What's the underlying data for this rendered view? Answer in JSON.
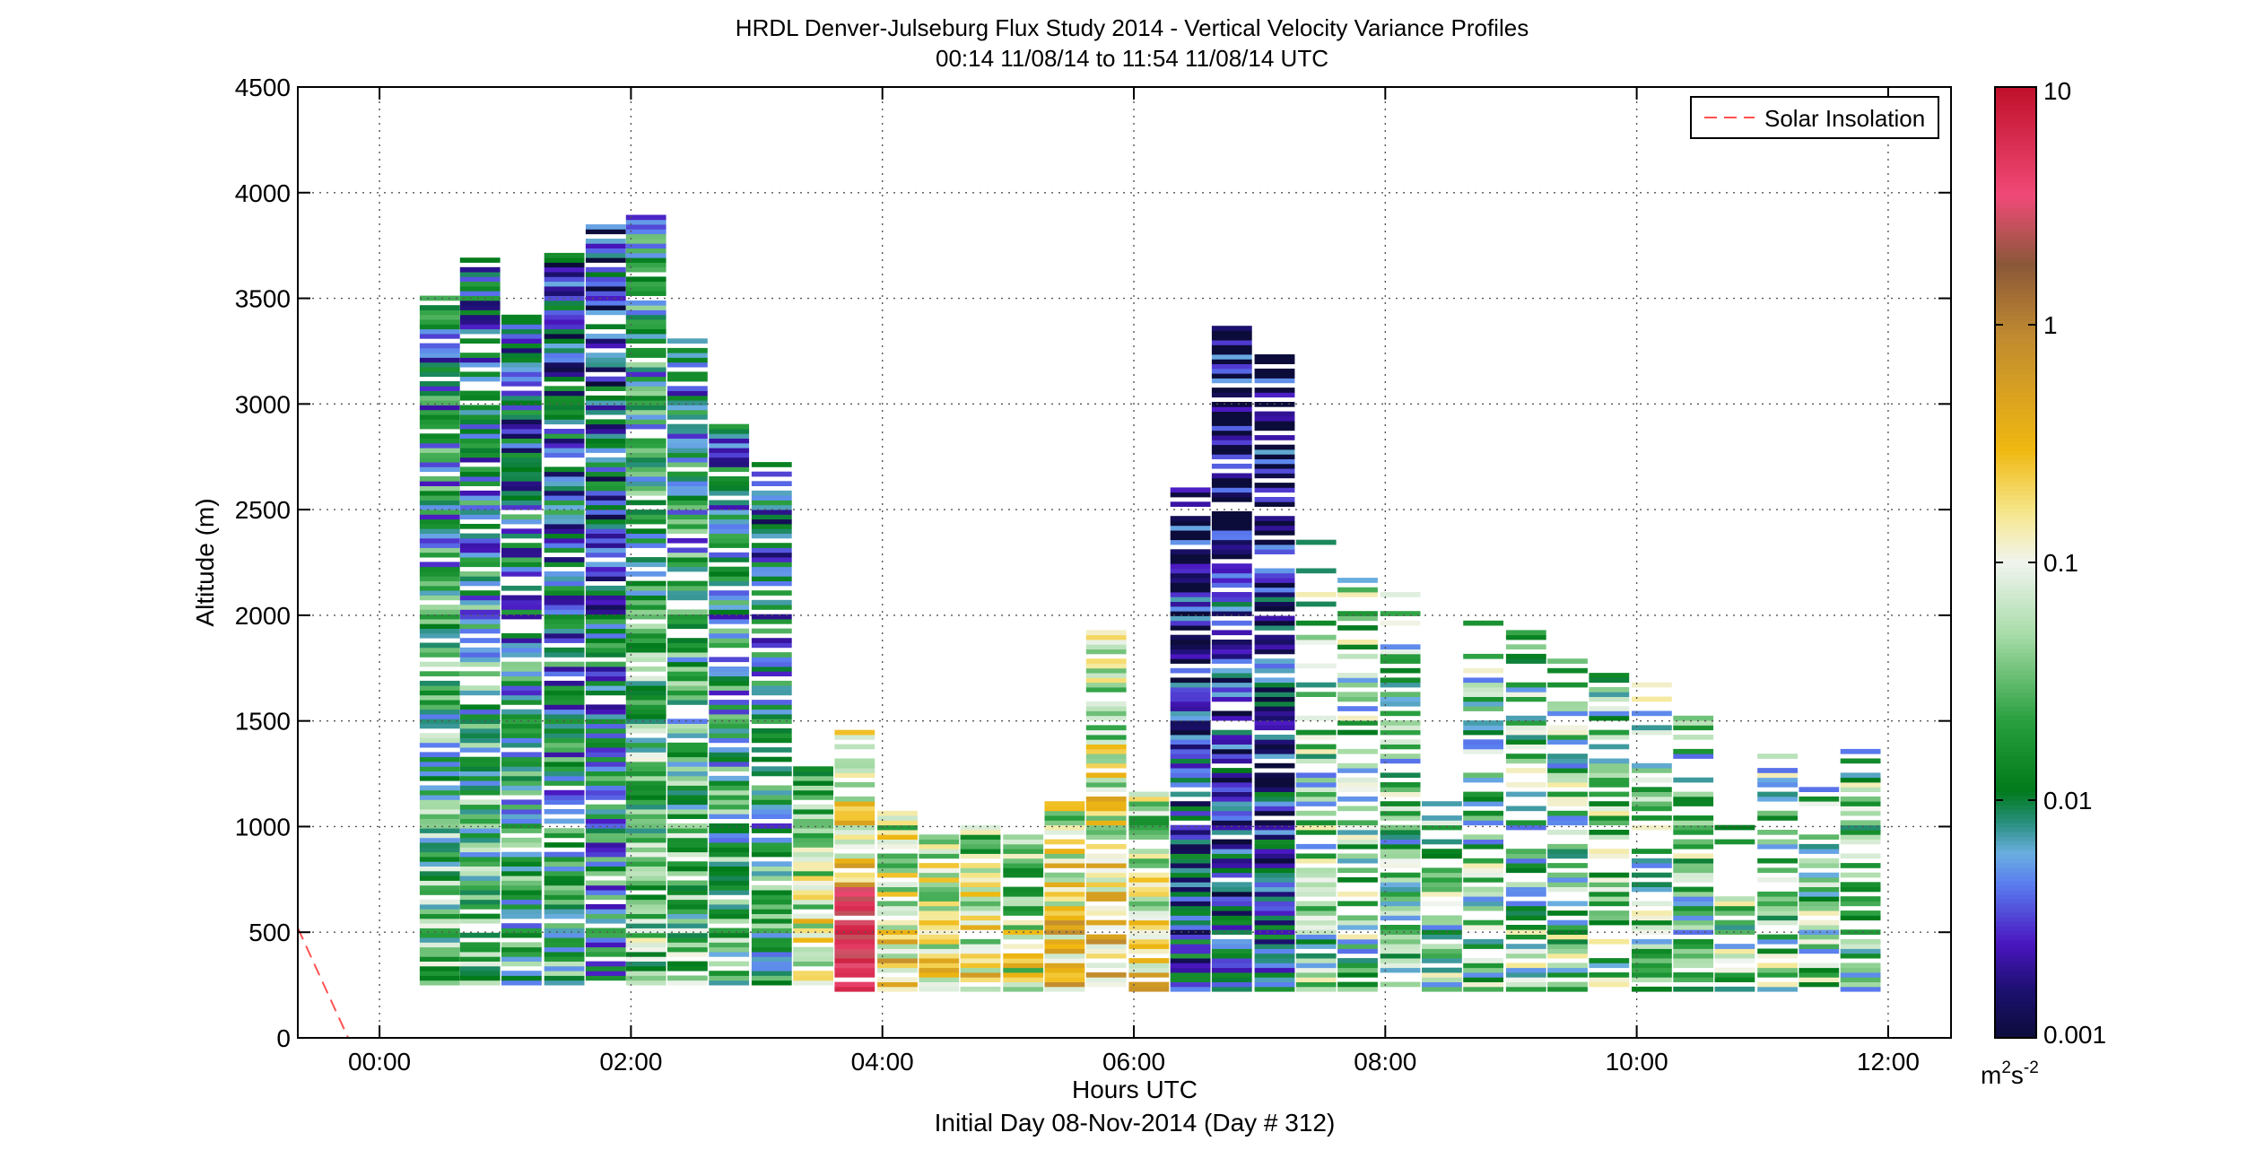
{
  "chart_data": {
    "type": "heatmap",
    "title_line1": "HRDL Denver-Julseburg Flux Study 2014 - Vertical Velocity Variance Profiles",
    "title_line2": "00:14 11/08/14 to 11:54 11/08/14  UTC",
    "xlabel": "Hours UTC",
    "xlabel2": "Initial Day 08-Nov-2014 (Day # 312)",
    "ylabel": "Altitude (m)",
    "xlim": [
      -0.65,
      12.5
    ],
    "ylim": [
      0,
      4500
    ],
    "grid": true,
    "x_ticks": [
      {
        "v": 0,
        "label": "00:00"
      },
      {
        "v": 2,
        "label": "02:00"
      },
      {
        "v": 4,
        "label": "04:00"
      },
      {
        "v": 6,
        "label": "06:00"
      },
      {
        "v": 8,
        "label": "08:00"
      },
      {
        "v": 10,
        "label": "10:00"
      },
      {
        "v": 12,
        "label": "12:00"
      }
    ],
    "y_ticks": [
      {
        "v": 0,
        "label": "0"
      },
      {
        "v": 500,
        "label": "500"
      },
      {
        "v": 1000,
        "label": "1000"
      },
      {
        "v": 1500,
        "label": "1500"
      },
      {
        "v": 2000,
        "label": "2000"
      },
      {
        "v": 2500,
        "label": "2500"
      },
      {
        "v": 3000,
        "label": "3000"
      },
      {
        "v": 3500,
        "label": "3500"
      },
      {
        "v": 4000,
        "label": "4000"
      },
      {
        "v": 4500,
        "label": "4500"
      }
    ],
    "legend": {
      "label": "Solar Insolation",
      "placement": "top-right",
      "color": "#ff5050"
    },
    "solar_insolation": {
      "x": [
        -0.65,
        -0.25
      ],
      "y": [
        520,
        0
      ]
    },
    "colorbar": {
      "scale": "log",
      "range": [
        0.001,
        10
      ],
      "ticks": [
        {
          "v": 0.001,
          "label": "0.001"
        },
        {
          "v": 0.01,
          "label": "0.01"
        },
        {
          "v": 0.1,
          "label": "0.1"
        },
        {
          "v": 1,
          "label": "1"
        },
        {
          "v": 10,
          "label": "10"
        }
      ],
      "units_base": "m",
      "units_exp1": "2",
      "units_mid": "s",
      "units_exp2": "-2",
      "stops": [
        {
          "v": 0.001,
          "c": "#0c0c3a"
        },
        {
          "v": 0.0016,
          "c": "#1c1070"
        },
        {
          "v": 0.0025,
          "c": "#4a16c0"
        },
        {
          "v": 0.0045,
          "c": "#5a7ff0"
        },
        {
          "v": 0.006,
          "c": "#6aaee0"
        },
        {
          "v": 0.008,
          "c": "#2a9080"
        },
        {
          "v": 0.011,
          "c": "#007a1a"
        },
        {
          "v": 0.022,
          "c": "#2aa040"
        },
        {
          "v": 0.05,
          "c": "#a8dca8"
        },
        {
          "v": 0.1,
          "c": "#f0f4ee"
        },
        {
          "v": 0.16,
          "c": "#f6e890"
        },
        {
          "v": 0.3,
          "c": "#f0b810"
        },
        {
          "v": 0.9,
          "c": "#c08a30"
        },
        {
          "v": 1.8,
          "c": "#8a5838"
        },
        {
          "v": 3.5,
          "c": "#f04a78"
        },
        {
          "v": 10,
          "c": "#c0102a"
        }
      ]
    },
    "profiles": [
      {
        "t": 0.48,
        "top": 3500,
        "bot": 250,
        "seed": 1
      },
      {
        "t": 0.8,
        "top": 3680,
        "bot": 250,
        "seed": 2
      },
      {
        "t": 1.13,
        "top": 3430,
        "bot": 250,
        "seed": 3
      },
      {
        "t": 1.47,
        "top": 3700,
        "bot": 250,
        "seed": 4
      },
      {
        "t": 1.8,
        "top": 3850,
        "bot": 250,
        "seed": 5
      },
      {
        "t": 2.12,
        "top": 3880,
        "bot": 250,
        "seed": 6
      },
      {
        "t": 2.45,
        "top": 3300,
        "bot": 250,
        "seed": 7
      },
      {
        "t": 2.78,
        "top": 2890,
        "bot": 250,
        "seed": 8
      },
      {
        "t": 3.12,
        "top": 2720,
        "bot": 250,
        "seed": 9
      },
      {
        "t": 3.45,
        "top": 1270,
        "bot": 250,
        "seed": 10
      },
      {
        "t": 3.78,
        "top": 1450,
        "bot": 220,
        "seed": 11
      },
      {
        "t": 4.12,
        "top": 1070,
        "bot": 220,
        "seed": 12
      },
      {
        "t": 4.45,
        "top": 950,
        "bot": 220,
        "seed": 13
      },
      {
        "t": 4.78,
        "top": 1000,
        "bot": 220,
        "seed": 14
      },
      {
        "t": 5.12,
        "top": 950,
        "bot": 220,
        "seed": 15
      },
      {
        "t": 5.45,
        "top": 1100,
        "bot": 220,
        "seed": 16
      },
      {
        "t": 5.78,
        "top": 1930,
        "bot": 220,
        "seed": 17
      },
      {
        "t": 6.12,
        "top": 1200,
        "bot": 220,
        "seed": 18
      },
      {
        "t": 6.45,
        "top": 2600,
        "bot": 220,
        "seed": 19
      },
      {
        "t": 6.78,
        "top": 3350,
        "bot": 220,
        "seed": 20
      },
      {
        "t": 7.12,
        "top": 3230,
        "bot": 220,
        "seed": 21
      },
      {
        "t": 7.45,
        "top": 2380,
        "bot": 220,
        "seed": 22
      },
      {
        "t": 7.78,
        "top": 2160,
        "bot": 220,
        "seed": 23
      },
      {
        "t": 8.12,
        "top": 2100,
        "bot": 220,
        "seed": 24
      },
      {
        "t": 8.45,
        "top": 1100,
        "bot": 220,
        "seed": 25
      },
      {
        "t": 8.78,
        "top": 1990,
        "bot": 220,
        "seed": 26
      },
      {
        "t": 9.12,
        "top": 1930,
        "bot": 220,
        "seed": 27
      },
      {
        "t": 9.45,
        "top": 1780,
        "bot": 220,
        "seed": 28
      },
      {
        "t": 9.78,
        "top": 1730,
        "bot": 220,
        "seed": 29
      },
      {
        "t": 10.12,
        "top": 1690,
        "bot": 220,
        "seed": 30
      },
      {
        "t": 10.45,
        "top": 1540,
        "bot": 220,
        "seed": 31
      },
      {
        "t": 10.78,
        "top": 1100,
        "bot": 220,
        "seed": 32
      },
      {
        "t": 11.12,
        "top": 1410,
        "bot": 220,
        "seed": 33
      },
      {
        "t": 11.45,
        "top": 1200,
        "bot": 220,
        "seed": 34
      },
      {
        "t": 11.78,
        "top": 1420,
        "bot": 220,
        "seed": 35
      }
    ]
  }
}
